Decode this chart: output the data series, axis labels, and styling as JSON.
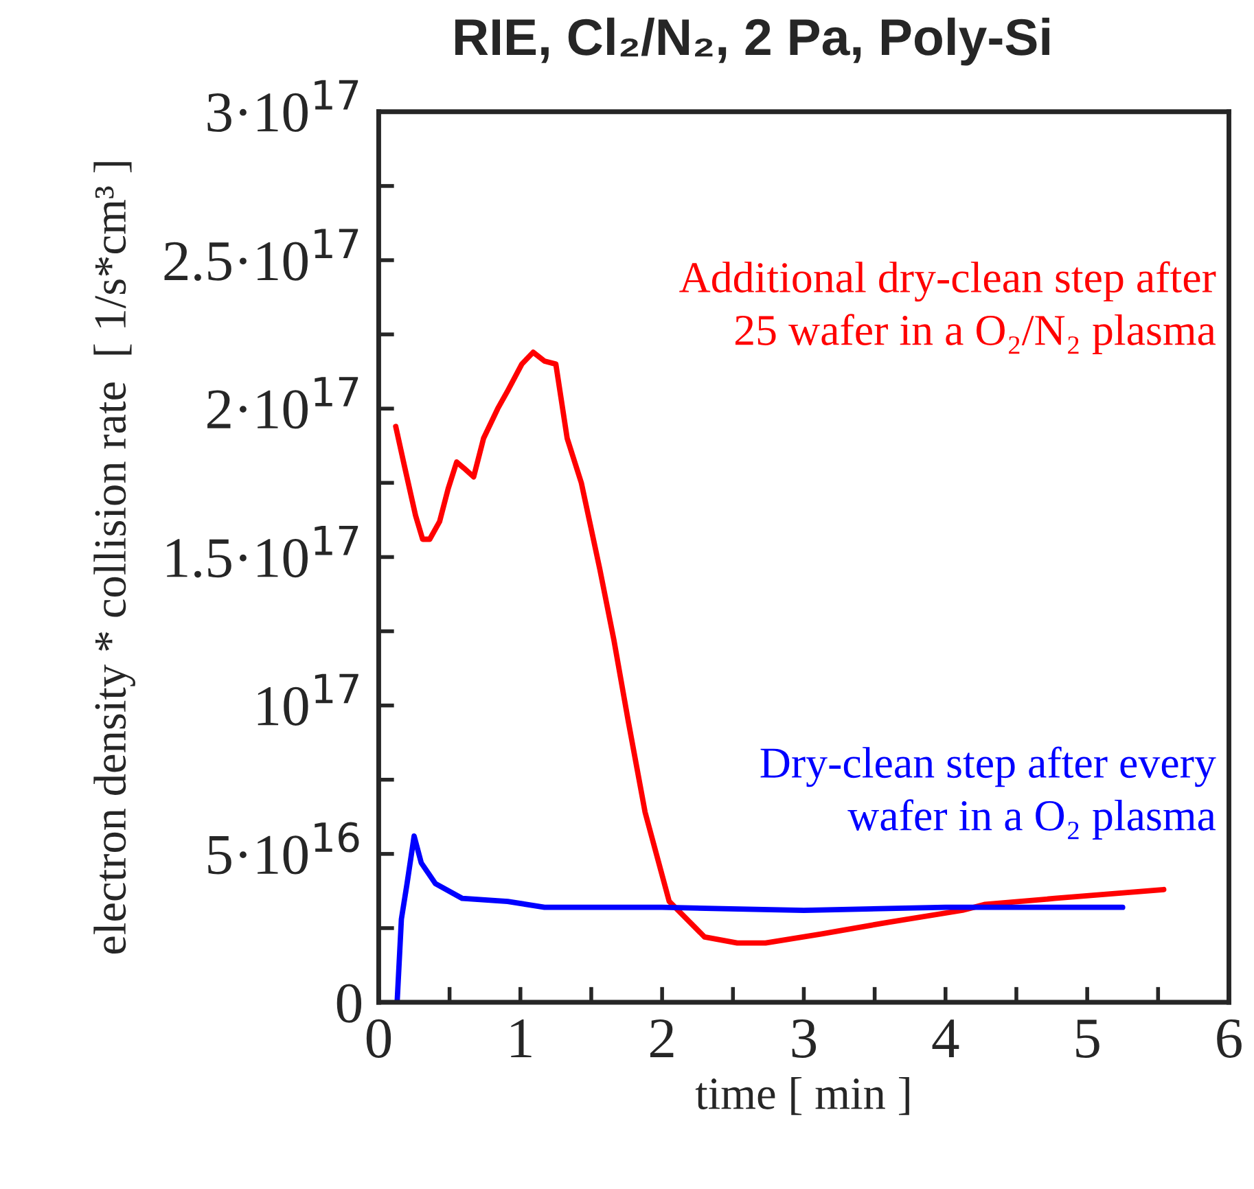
{
  "chart_data": {
    "type": "line",
    "title": "RIE, Cl₂/N₂, 2 Pa, Poly-Si",
    "xlabel": "time [ min ]",
    "ylabel": "electron density * collision rate  [ 1/s*cm³ ]",
    "xlim": [
      0,
      6
    ],
    "xticks": [
      0,
      {
        "value": 0.5,
        "label": null
      },
      1,
      {
        "value": 1.5,
        "label": null
      },
      2,
      {
        "value": 2.5,
        "label": null
      },
      3,
      {
        "value": 3.5,
        "label": null
      },
      4,
      {
        "value": 4.5,
        "label": null
      },
      5,
      {
        "value": 5.5,
        "label": null
      },
      6
    ],
    "ylim": [
      0,
      3e+17
    ],
    "yticks": [
      {
        "value": 0,
        "label": "0"
      },
      {
        "value": 2.5e+16,
        "label": null
      },
      {
        "value": 5e+16,
        "label": "5·10$^{16}$"
      },
      {
        "value": 7.5e+16,
        "label": null
      },
      {
        "value": 1e+17,
        "label": "10$^{17}$"
      },
      {
        "value": 1.25e+17,
        "label": null
      },
      {
        "value": 1.5e+17,
        "label": "1.5·10$^{17}$"
      },
      {
        "value": 1.75e+17,
        "label": null
      },
      {
        "value": 2e+17,
        "label": "2·10$^{17}$"
      },
      {
        "value": 2.25e+17,
        "label": null
      },
      {
        "value": 2.5e+17,
        "label": "2.5·10$^{17}$"
      },
      {
        "value": 2.75e+17,
        "label": null
      },
      {
        "value": 3e+17,
        "label": "3·10$^{17}$"
      }
    ],
    "grid": false,
    "legend": false,
    "marker": "none",
    "line_style": "solid",
    "series": [
      {
        "color": "#ff0000",
        "x": [
          0.12,
          0.18,
          0.26,
          0.31,
          0.36,
          0.43,
          0.49,
          0.55,
          0.6,
          0.67,
          0.74,
          0.84,
          0.91,
          1.01,
          1.09,
          1.17,
          1.25,
          1.33,
          1.43,
          1.56,
          1.66,
          1.76,
          1.88,
          2.05,
          2.3,
          2.53,
          2.73,
          3.12,
          3.6,
          4.12,
          4.28,
          4.77,
          5.54
        ],
        "values": [
          1.94e+17,
          1.81e+17,
          1.64e+17,
          1.56e+17,
          1.56e+17,
          1.62e+17,
          1.73e+17,
          1.82e+17,
          1.8e+17,
          1.77e+17,
          1.9e+17,
          2e+17,
          2.06e+17,
          2.15e+17,
          2.19e+17,
          2.16e+17,
          2.15e+17,
          1.9e+17,
          1.75e+17,
          1.46e+17,
          1.22e+17,
          9.5e+16,
          6.4e+16,
          3.4e+16,
          2.2e+16,
          2e+16,
          2e+16,
          2.3e+16,
          2.7e+16,
          3.1e+16,
          3.3e+16,
          3.5e+16,
          3.8e+16
        ]
      },
      {
        "color": "#0000ff",
        "x": [
          0.13,
          0.16,
          0.2,
          0.25,
          0.3,
          0.4,
          0.59,
          0.91,
          1.17,
          2.0,
          3.0,
          4.0,
          5.25
        ],
        "values": [
          0,
          2.8e+16,
          4e+16,
          5.6e+16,
          4.7e+16,
          4e+16,
          3.5e+16,
          3.4e+16,
          3.2e+16,
          3.2e+16,
          3.1e+16,
          3.2e+16,
          3.2e+16
        ]
      }
    ],
    "annotations": [
      "Additional dry-clean step after\n25 wafer in a O₂/N₂ plasma",
      "Dry-clean step after every\nwafer in a O₂ plasma"
    ]
  }
}
